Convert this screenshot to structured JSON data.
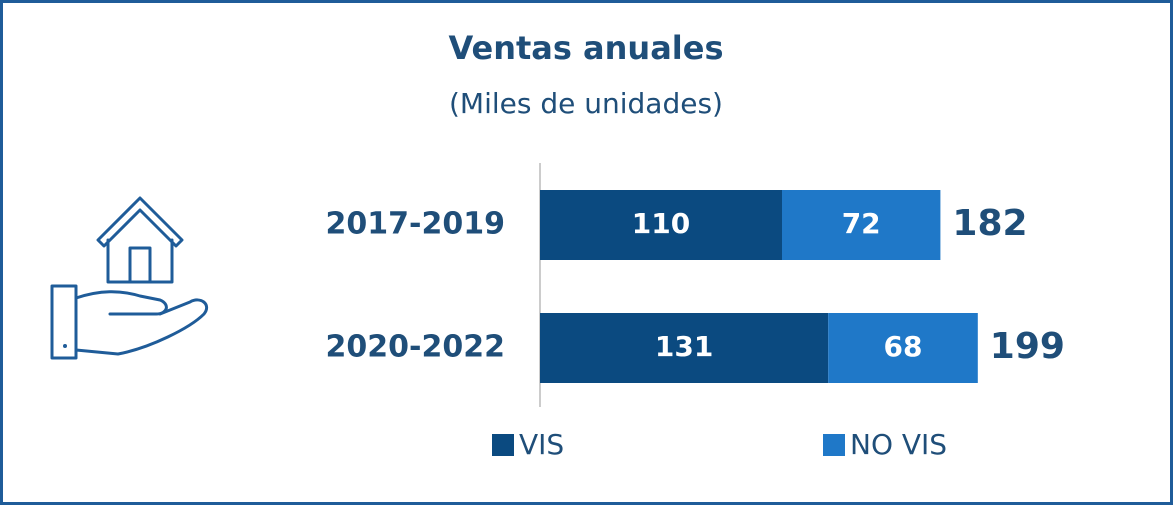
{
  "chart_data": {
    "type": "stacked_bar_horizontal",
    "title": "Ventas anuales",
    "subtitle": "(Miles de unidades)",
    "categories": [
      "2017-2019",
      "2020-2022"
    ],
    "series": [
      {
        "name": "VIS",
        "color": "#0b4a80",
        "values": [
          110,
          131
        ]
      },
      {
        "name": "NO VIS",
        "color": "#1f78c8",
        "values": [
          72,
          68
        ]
      }
    ],
    "totals": [
      182,
      199
    ],
    "legend": "bottom"
  }
}
